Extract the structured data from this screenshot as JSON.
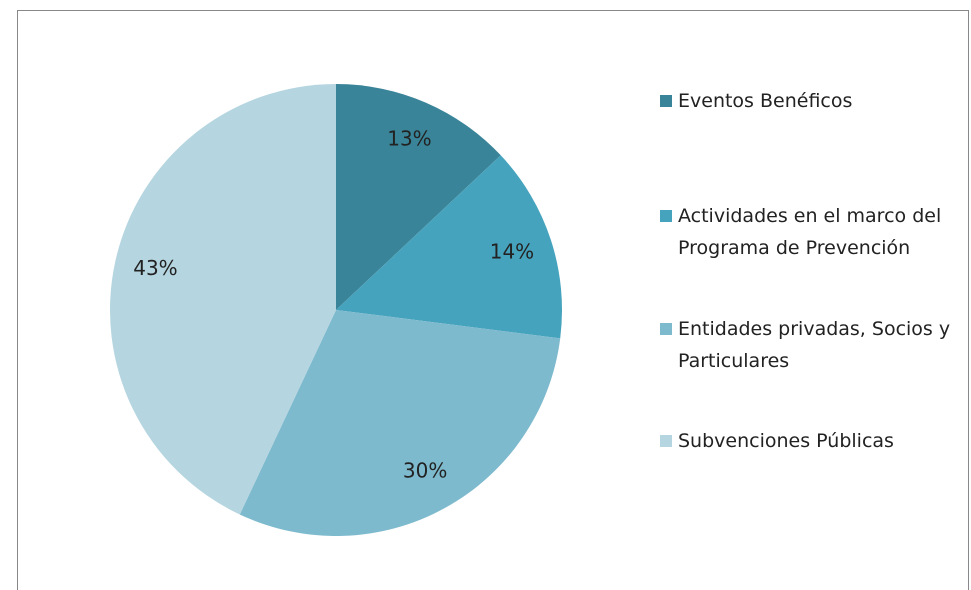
{
  "chart_data": {
    "type": "pie",
    "categories": [
      "Eventos Benéficos",
      "Actividades en el marco del Programa de Prevención",
      "Entidades privadas, Socios y Particulares",
      "Subvenciones Públicas"
    ],
    "values": [
      13,
      14,
      30,
      43
    ],
    "value_labels": [
      "13%",
      "14%",
      "30%",
      "43%"
    ],
    "colors": [
      "#3a8499",
      "#46a3bd",
      "#7ebace",
      "#b5d5e0"
    ]
  }
}
